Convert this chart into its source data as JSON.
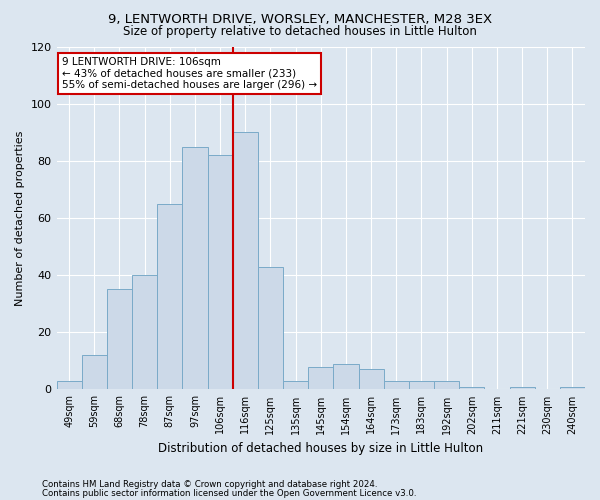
{
  "title1": "9, LENTWORTH DRIVE, WORSLEY, MANCHESTER, M28 3EX",
  "title2": "Size of property relative to detached houses in Little Hulton",
  "xlabel": "Distribution of detached houses by size in Little Hulton",
  "ylabel": "Number of detached properties",
  "bins": [
    "49sqm",
    "59sqm",
    "68sqm",
    "78sqm",
    "87sqm",
    "97sqm",
    "106sqm",
    "116sqm",
    "125sqm",
    "135sqm",
    "145sqm",
    "154sqm",
    "164sqm",
    "173sqm",
    "183sqm",
    "192sqm",
    "202sqm",
    "211sqm",
    "221sqm",
    "230sqm",
    "240sqm"
  ],
  "bar_values": [
    3,
    12,
    35,
    40,
    65,
    85,
    82,
    90,
    43,
    3,
    8,
    9,
    7,
    3,
    3,
    3,
    1,
    0,
    1,
    0,
    1
  ],
  "bar_color": "#ccd9e8",
  "bar_edge_color": "#7aaac8",
  "vline_color": "#cc0000",
  "annotation_text_line1": "9 LENTWORTH DRIVE: 106sqm",
  "annotation_text_line2": "← 43% of detached houses are smaller (233)",
  "annotation_text_line3": "55% of semi-detached houses are larger (296) →",
  "annotation_box_color": "white",
  "annotation_box_edge": "#cc0000",
  "background_color": "#dce6f0",
  "grid_color": "white",
  "ylim": [
    0,
    120
  ],
  "yticks": [
    0,
    20,
    40,
    60,
    80,
    100,
    120
  ],
  "footer1": "Contains HM Land Registry data © Crown copyright and database right 2024.",
  "footer2": "Contains public sector information licensed under the Open Government Licence v3.0."
}
